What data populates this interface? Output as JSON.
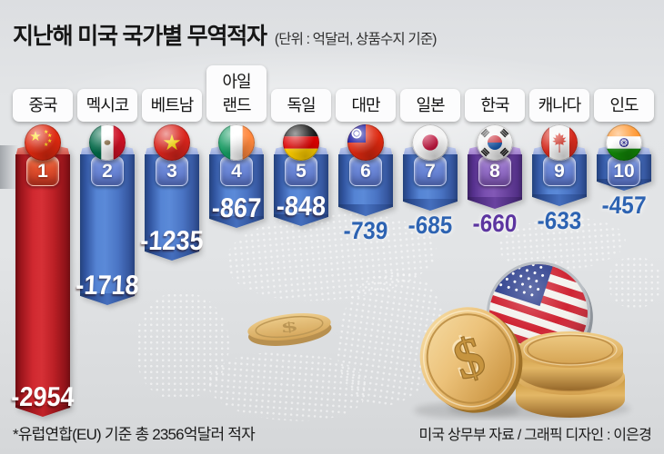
{
  "title": {
    "text": "지난해 미국 국가별 무역적자",
    "unit": "(단위 : 억달러, 상품수지 기준)"
  },
  "chart_data": {
    "type": "bar",
    "title": "지난해 미국 국가별 무역적자",
    "unit_label": "억달러, 상품수지 기준",
    "orientation": "columns-extending-downward",
    "categories": [
      "중국",
      "멕시코",
      "베트남",
      "아일랜드",
      "독일",
      "대만",
      "일본",
      "한국",
      "캐나다",
      "인도"
    ],
    "values": [
      -2954,
      -1718,
      -1235,
      -867,
      -848,
      -739,
      -685,
      -660,
      -633,
      -457
    ],
    "ranks": [
      1,
      2,
      3,
      4,
      5,
      6,
      7,
      8,
      9,
      10
    ],
    "value_range": [
      -3000,
      0
    ],
    "grid": false,
    "legend": false,
    "footnote": "*유럽연합(EU) 기준 총 2356억달러 적자",
    "source_credit": "미국 상무부 자료 / 그래픽 디자인 : 이은경"
  },
  "bars": [
    {
      "rank": 1,
      "country": "중국",
      "label": "중국",
      "value": -2954,
      "flag": "china",
      "theme": "red",
      "value_placement": "inside"
    },
    {
      "rank": 2,
      "country": "멕시코",
      "label": "멕시코",
      "value": -1718,
      "flag": "mexico",
      "theme": "blue",
      "value_placement": "inside"
    },
    {
      "rank": 3,
      "country": "베트남",
      "label": "베트남",
      "value": -1235,
      "flag": "vietnam",
      "theme": "blue",
      "value_placement": "inside"
    },
    {
      "rank": 4,
      "country": "아일랜드",
      "label": "아일\n랜드",
      "value": -867,
      "flag": "ireland",
      "theme": "blue",
      "value_placement": "inside"
    },
    {
      "rank": 5,
      "country": "독일",
      "label": "독일",
      "value": -848,
      "flag": "germany",
      "theme": "blue",
      "value_placement": "inside"
    },
    {
      "rank": 6,
      "country": "대만",
      "label": "대만",
      "value": -739,
      "flag": "taiwan",
      "theme": "blue",
      "value_placement": "below"
    },
    {
      "rank": 7,
      "country": "일본",
      "label": "일본",
      "value": -685,
      "flag": "japan",
      "theme": "blue",
      "value_placement": "below"
    },
    {
      "rank": 8,
      "country": "한국",
      "label": "한국",
      "value": -660,
      "flag": "korea",
      "theme": "purple",
      "value_placement": "below"
    },
    {
      "rank": 9,
      "country": "캐나다",
      "label": "캐나다",
      "value": -633,
      "flag": "canada",
      "theme": "blue",
      "value_placement": "below"
    },
    {
      "rank": 10,
      "country": "인도",
      "label": "인도",
      "value": -457,
      "flag": "india",
      "theme": "blue",
      "value_placement": "below"
    }
  ],
  "footer": {
    "note": "*유럽연합(EU) 기준 총 2356억달러 적자",
    "credit": "미국 상무부 자료 / 그래픽 디자인 : 이은경"
  },
  "colors": {
    "bar_blue": "#4a77c8",
    "bar_red": "#c42127",
    "bar_purple": "#7a50b0",
    "value_blue": "#2d63b2",
    "value_purple": "#5c35a0",
    "background": "#e0e2e4"
  }
}
